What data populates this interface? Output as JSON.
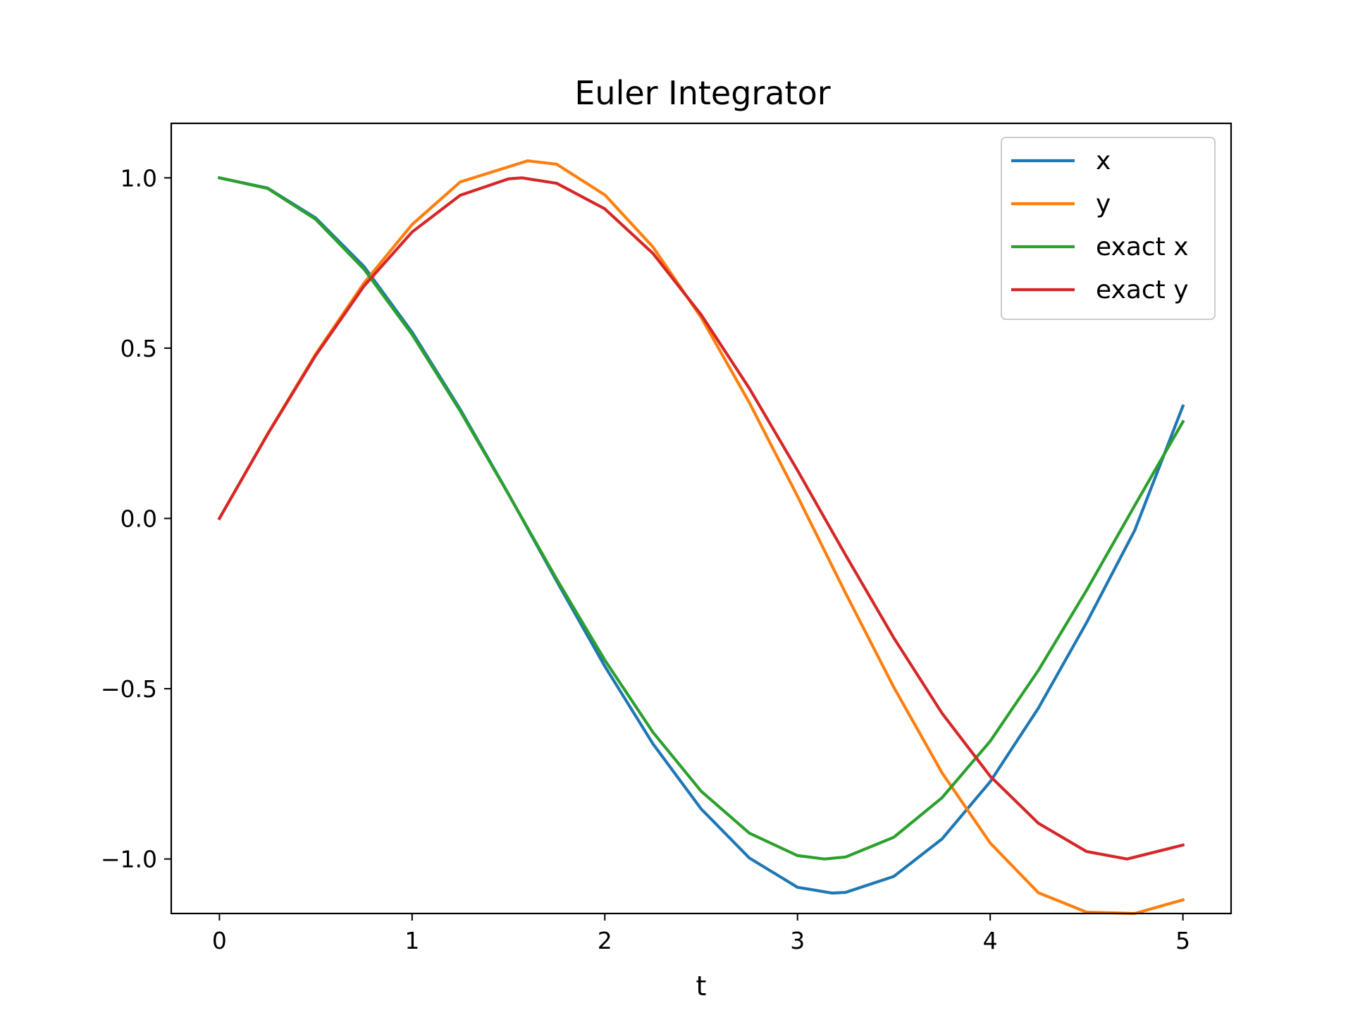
{
  "chart_data": {
    "type": "line",
    "title": "Euler Integrator",
    "xlabel": "t",
    "ylabel": "",
    "xlim": [
      -0.25,
      5.25
    ],
    "ylim": [
      -1.16,
      1.16
    ],
    "xticks": [
      0,
      1,
      2,
      3,
      4,
      5
    ],
    "xtick_labels": [
      "0",
      "1",
      "2",
      "3",
      "4",
      "5"
    ],
    "yticks": [
      1.0,
      0.5,
      0.0,
      -0.5,
      -1.0
    ],
    "ytick_labels": [
      "1.0",
      "0.5",
      "0.0",
      "−0.5",
      "−1.0"
    ],
    "grid": false,
    "legend_position": "upper right",
    "series": [
      {
        "name": "x",
        "color": "#1f77b4",
        "x": [
          0,
          0.25,
          0.5,
          0.75,
          1.0,
          1.25,
          1.5,
          1.75,
          2.0,
          2.25,
          2.5,
          2.75,
          3.0,
          3.18,
          3.25,
          3.5,
          3.75,
          4.0,
          4.25,
          4.5,
          4.75,
          5.0
        ],
        "y": [
          1.0,
          0.97,
          0.882,
          0.74,
          0.547,
          0.32,
          0.072,
          -0.184,
          -0.434,
          -0.662,
          -0.853,
          -0.997,
          -1.083,
          -1.1,
          -1.098,
          -1.051,
          -0.941,
          -0.773,
          -0.557,
          -0.306,
          -0.035,
          0.33
        ]
      },
      {
        "name": "y",
        "color": "#ff7f0e",
        "x": [
          0,
          0.25,
          0.5,
          0.75,
          1.0,
          1.25,
          1.6,
          1.75,
          2.0,
          2.25,
          2.5,
          2.75,
          3.0,
          3.25,
          3.5,
          3.75,
          4.0,
          4.25,
          4.5,
          4.75,
          5.0
        ],
        "y": [
          0.0,
          0.248,
          0.483,
          0.691,
          0.863,
          0.988,
          1.05,
          1.04,
          0.95,
          0.797,
          0.59,
          0.34,
          0.065,
          -0.22,
          -0.496,
          -0.747,
          -0.953,
          -1.099,
          -1.156,
          -1.16,
          -1.12
        ]
      },
      {
        "name": "exact x",
        "color": "#2ca02c",
        "x": [
          0,
          0.25,
          0.5,
          0.75,
          1.0,
          1.25,
          1.5,
          1.75,
          2.0,
          2.25,
          2.5,
          2.75,
          3.0,
          3.14,
          3.25,
          3.5,
          3.75,
          4.0,
          4.25,
          4.5,
          4.75,
          5.0
        ],
        "y": [
          1.0,
          0.969,
          0.878,
          0.732,
          0.54,
          0.315,
          0.071,
          -0.178,
          -0.416,
          -0.628,
          -0.801,
          -0.924,
          -0.99,
          -1.0,
          -0.994,
          -0.936,
          -0.82,
          -0.654,
          -0.446,
          -0.211,
          0.038,
          0.284
        ]
      },
      {
        "name": "exact y",
        "color": "#d62728",
        "x": [
          0,
          0.25,
          0.5,
          0.75,
          1.0,
          1.25,
          1.5,
          1.57,
          1.75,
          2.0,
          2.25,
          2.5,
          2.75,
          3.0,
          3.25,
          3.5,
          3.75,
          4.0,
          4.25,
          4.5,
          4.71,
          5.0
        ],
        "y": [
          0.0,
          0.247,
          0.479,
          0.682,
          0.841,
          0.949,
          0.997,
          1.0,
          0.984,
          0.909,
          0.778,
          0.598,
          0.382,
          0.141,
          -0.108,
          -0.351,
          -0.572,
          -0.757,
          -0.895,
          -0.978,
          -1.0,
          -0.959
        ]
      }
    ]
  }
}
